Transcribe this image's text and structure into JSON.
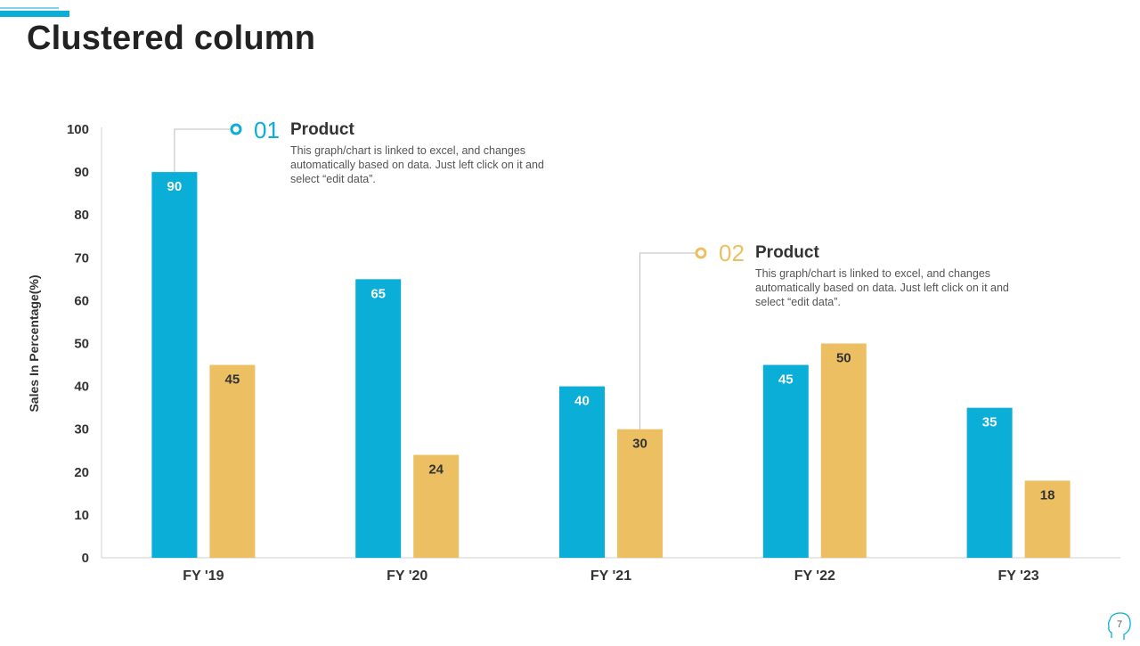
{
  "slide": {
    "title": "Clustered column",
    "page_number": "7"
  },
  "colors": {
    "series1": "#0aaed6",
    "series2": "#ecbf63",
    "axis": "#d0d0d0",
    "text": "#333333"
  },
  "callouts": [
    {
      "number": "01",
      "heading": "Product",
      "text": "This graph/chart is linked to excel, and changes automatically based on data. Just left click on it and select “edit data”.",
      "color": "#0aaed6"
    },
    {
      "number": "02",
      "heading": "Product",
      "text": "This graph/chart is linked to excel, and changes automatically based on data. Just left click on it and select “edit data”.",
      "color": "#ecbf63"
    }
  ],
  "chart_data": {
    "type": "bar",
    "title": "",
    "xlabel": "",
    "ylabel": "Sales In Percentage(%)",
    "categories": [
      "FY '19",
      "FY '20",
      "FY '21",
      "FY '22",
      "FY '23"
    ],
    "series": [
      {
        "name": "Product 01",
        "values": [
          90,
          65,
          40,
          45,
          35
        ],
        "color": "#0aaed6"
      },
      {
        "name": "Product 02",
        "values": [
          45,
          24,
          30,
          50,
          18
        ],
        "color": "#ecbf63"
      }
    ],
    "ylim": [
      0,
      100
    ],
    "yticks": [
      0,
      10,
      20,
      30,
      40,
      50,
      60,
      70,
      80,
      90,
      100
    ],
    "grid": false,
    "data_labels": true
  }
}
